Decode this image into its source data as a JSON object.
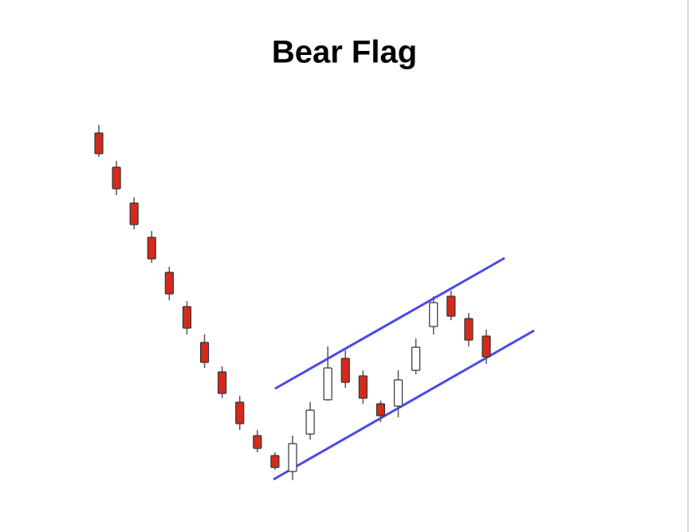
{
  "chart_data": {
    "type": "candlestick",
    "title": "Bear Flag",
    "categories": [
      null,
      null,
      null,
      null,
      null,
      null,
      null,
      null,
      null,
      null,
      null,
      null,
      null,
      null,
      null,
      null,
      null,
      null,
      null,
      null,
      null,
      null,
      null
    ],
    "open": [
      90.6,
      82,
      73,
      64.4,
      55.6,
      47,
      38,
      30.6,
      23,
      14.6,
      9.6,
      5.6,
      15,
      23.6,
      34,
      29.6,
      22.6,
      22,
      31,
      42,
      49.6,
      44,
      39.6
    ],
    "high": [
      92.6,
      83.6,
      74.4,
      66,
      57,
      48.4,
      40,
      32,
      24.6,
      16,
      10.4,
      14.6,
      23,
      37,
      36,
      31,
      23.4,
      31,
      39,
      49.6,
      51,
      45.4,
      41.2
    ],
    "low": [
      84.6,
      75,
      66.4,
      58,
      48.6,
      40,
      31.6,
      24,
      16,
      10.4,
      6,
      3.4,
      13.6,
      23.4,
      26.6,
      22.6,
      18,
      19.2,
      30,
      40,
      43.6,
      37,
      32.6
    ],
    "close": [
      85.4,
      76.6,
      67.6,
      59,
      50.2,
      41.6,
      33,
      25.2,
      17.6,
      11.4,
      6.6,
      12.6,
      21,
      31.6,
      28,
      24,
      19.6,
      28.6,
      36.8,
      48,
      44.6,
      38.6,
      34.4
    ],
    "up_color": "#ffffff",
    "down_color": "#d42a1e",
    "ylim": [
      0,
      96
    ]
  }
}
